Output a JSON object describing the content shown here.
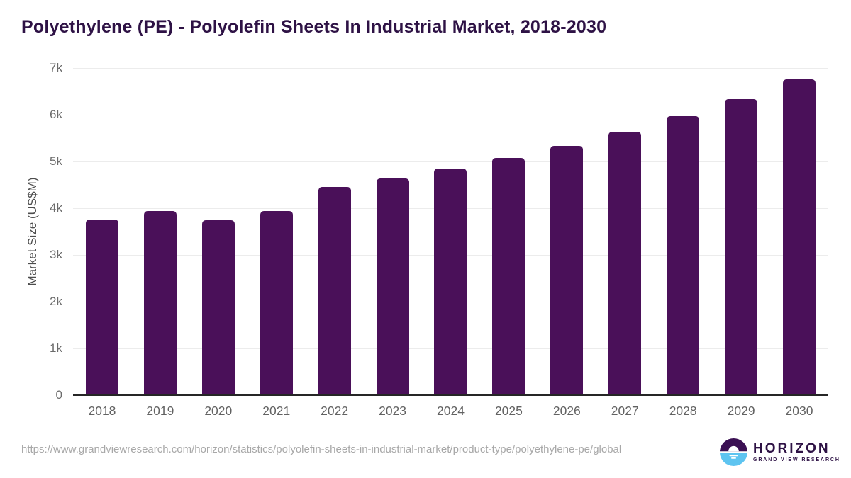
{
  "title": "Polyethylene (PE) - Polyolefin Sheets In Industrial Market, 2018-2030",
  "chart_data": {
    "type": "bar",
    "categories": [
      "2018",
      "2019",
      "2020",
      "2021",
      "2022",
      "2023",
      "2024",
      "2025",
      "2026",
      "2027",
      "2028",
      "2029",
      "2030"
    ],
    "values": [
      3760,
      3940,
      3740,
      3935,
      4450,
      4635,
      4850,
      5070,
      5340,
      5630,
      5970,
      6340,
      6760
    ],
    "title": "Polyethylene (PE) - Polyolefin Sheets In Industrial Market, 2018-2030",
    "xlabel": "",
    "ylabel": "Market Size (US$M)",
    "ylim": [
      0,
      7000
    ],
    "ytick_step": 1000,
    "ytick_labels": [
      "0",
      "1k",
      "2k",
      "3k",
      "4k",
      "5k",
      "6k",
      "7k"
    ],
    "grid": true,
    "legend_position": "none",
    "bar_color": "#4a1059"
  },
  "footer": {
    "url": "https://www.grandviewresearch.com/horizon/statistics/polyolefin-sheets-in-industrial-market/product-type/polyethylene-pe/global",
    "logo": {
      "brand": "HORIZON",
      "sub_brand": "GRAND VIEW RESEARCH"
    }
  },
  "colors": {
    "background": "#ffffff",
    "title_text": "#2e1245",
    "bar_fill": "#4a1059",
    "gridline": "#ececec",
    "axis_line": "#262626",
    "tick_text": "#666666",
    "url_text": "#a8a8a8",
    "logo_purple": "#3b1053",
    "logo_blue": "#5ec4f0"
  }
}
